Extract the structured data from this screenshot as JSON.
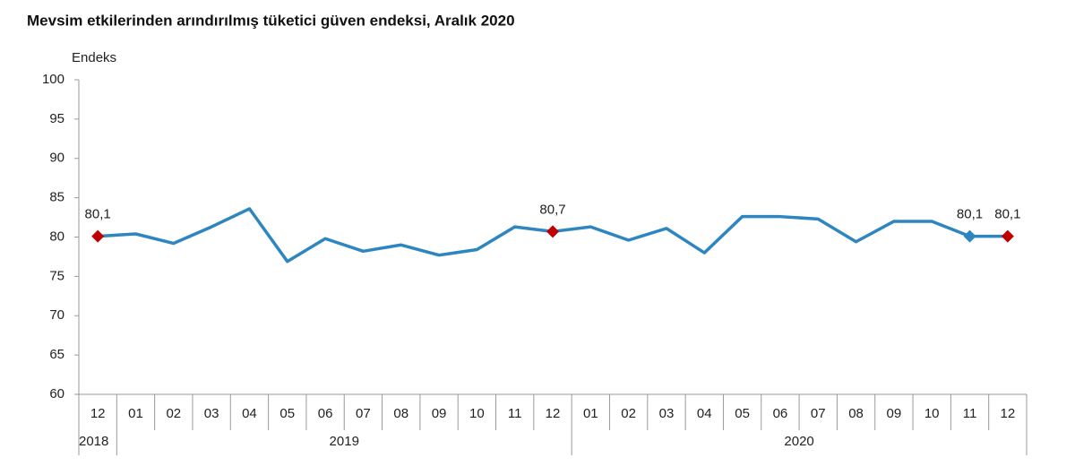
{
  "chart_data": {
    "type": "line",
    "title": "Mevsim etkilerinden arındırılmış tüketici güven endeksi, Aralık 2020",
    "y_label": "Endeks",
    "categories": [
      "12",
      "01",
      "02",
      "03",
      "04",
      "05",
      "06",
      "07",
      "08",
      "09",
      "10",
      "11",
      "12",
      "01",
      "02",
      "03",
      "04",
      "05",
      "06",
      "07",
      "08",
      "09",
      "10",
      "11",
      "12"
    ],
    "year_groups": [
      {
        "label": "2018",
        "count": 1
      },
      {
        "label": "2019",
        "count": 12
      },
      {
        "label": "2020",
        "count": 12
      }
    ],
    "series": [
      {
        "name": "Endeks",
        "color": "#2e86c1",
        "values": [
          80.1,
          80.4,
          79.2,
          81.3,
          83.6,
          76.9,
          79.8,
          78.2,
          79.0,
          77.7,
          78.4,
          81.3,
          80.7,
          81.3,
          79.6,
          81.1,
          78.0,
          82.6,
          82.6,
          82.3,
          79.4,
          82.0,
          82.0,
          80.1,
          80.1
        ],
        "value_labels": [
          "80,1",
          null,
          null,
          null,
          null,
          null,
          null,
          null,
          null,
          null,
          null,
          null,
          "80,7",
          null,
          null,
          null,
          null,
          null,
          null,
          null,
          null,
          null,
          null,
          "80,1",
          "80,1"
        ],
        "marker_colors": [
          "#c00000",
          null,
          null,
          null,
          null,
          null,
          null,
          null,
          null,
          null,
          null,
          null,
          "#c00000",
          null,
          null,
          null,
          null,
          null,
          null,
          null,
          null,
          null,
          null,
          "#2e86c1",
          "#c00000"
        ]
      }
    ],
    "ylim": [
      60,
      100
    ],
    "yticks": [
      60,
      65,
      70,
      75,
      80,
      85,
      90,
      95,
      100
    ],
    "grid": false
  }
}
